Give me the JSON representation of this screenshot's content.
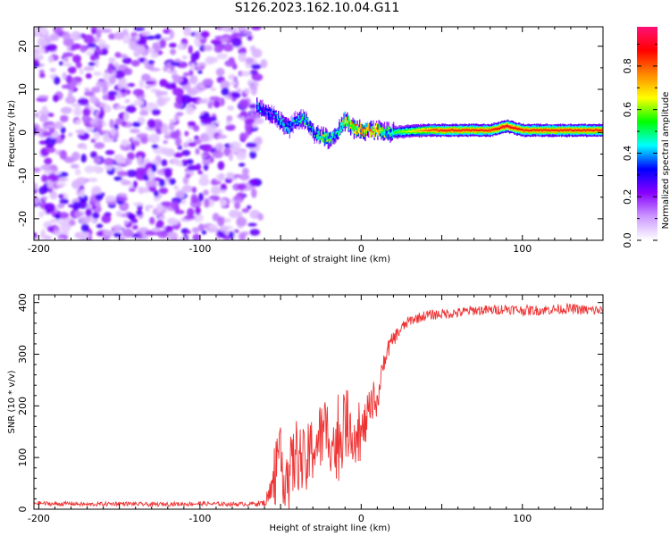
{
  "title": "S126.2023.162.10.04.G11",
  "chart_data": [
    {
      "type": "heatmap",
      "title": "S126.2023.162.10.04.G11",
      "xlabel": "Height of straight line (km)",
      "ylabel": "Frequency (Hz)",
      "xlim": [
        -203,
        150
      ],
      "ylim": [
        -25,
        24.5
      ],
      "x_ticks": [
        -200,
        -100,
        0,
        100
      ],
      "x_tick_labels": [
        "-200",
        "-100",
        "0",
        "100"
      ],
      "y_ticks": [
        -20,
        -10,
        0,
        10,
        20
      ],
      "y_tick_labels": [
        "-20",
        "-10",
        "0",
        "10",
        "20"
      ],
      "colorbar": {
        "label": "Normalized spectral amplitude",
        "range": [
          0,
          0.98
        ],
        "ticks": [
          0,
          0.2,
          0.4,
          0.6,
          0.8
        ],
        "tick_labels": [
          "0.0",
          "0.2",
          "0.4",
          "0.6",
          "0.8"
        ],
        "colormap": [
          "#ffffff",
          "#cc99ff",
          "#8800ff",
          "#0000ff",
          "#00ffff",
          "#00ff00",
          "#ffff00",
          "#ff8800",
          "#ff0000",
          "#ff1177"
        ]
      },
      "regions": {
        "noise_x_range": [
          -203,
          -63
        ],
        "noise_amplitude_range": [
          0.05,
          0.28
        ],
        "signal_track": [
          {
            "x": -65,
            "freq": 6.0,
            "amp": 0.45
          },
          {
            "x": -60,
            "freq": 5.0,
            "amp": 0.35
          },
          {
            "x": -55,
            "freq": 4.0,
            "amp": 0.4
          },
          {
            "x": -50,
            "freq": 2.5,
            "amp": 0.5
          },
          {
            "x": -45,
            "freq": 1.0,
            "amp": 0.45
          },
          {
            "x": -40,
            "freq": 3.0,
            "amp": 0.45
          },
          {
            "x": -35,
            "freq": 3.0,
            "amp": 0.55
          },
          {
            "x": -30,
            "freq": 0.0,
            "amp": 0.4
          },
          {
            "x": -25,
            "freq": -1.0,
            "amp": 0.65
          },
          {
            "x": -20,
            "freq": -1.5,
            "amp": 0.6
          },
          {
            "x": -15,
            "freq": 0.0,
            "amp": 0.5
          },
          {
            "x": -10,
            "freq": 3.0,
            "amp": 0.75
          },
          {
            "x": -5,
            "freq": 1.0,
            "amp": 0.75
          },
          {
            "x": 0,
            "freq": 0.5,
            "amp": 0.85
          },
          {
            "x": 5,
            "freq": 0.5,
            "amp": 0.9
          },
          {
            "x": 10,
            "freq": 0.5,
            "amp": 0.8
          },
          {
            "x": 15,
            "freq": 0.0,
            "amp": 0.6
          },
          {
            "x": 20,
            "freq": 0.0,
            "amp": 0.55
          },
          {
            "x": 30,
            "freq": 0.3,
            "amp": 0.65
          },
          {
            "x": 40,
            "freq": 0.5,
            "amp": 0.8
          },
          {
            "x": 50,
            "freq": 0.5,
            "amp": 0.85
          },
          {
            "x": 60,
            "freq": 0.5,
            "amp": 0.85
          },
          {
            "x": 70,
            "freq": 0.5,
            "amp": 0.85
          },
          {
            "x": 80,
            "freq": 0.5,
            "amp": 0.85
          },
          {
            "x": 90,
            "freq": 1.5,
            "amp": 0.92
          },
          {
            "x": 100,
            "freq": 0.5,
            "amp": 0.85
          },
          {
            "x": 110,
            "freq": 0.5,
            "amp": 0.85
          },
          {
            "x": 120,
            "freq": 0.5,
            "amp": 0.85
          },
          {
            "x": 130,
            "freq": 0.5,
            "amp": 0.85
          },
          {
            "x": 140,
            "freq": 0.5,
            "amp": 0.85
          },
          {
            "x": 150,
            "freq": 0.5,
            "amp": 0.85
          }
        ]
      }
    },
    {
      "type": "line",
      "xlabel": "Height of straight line (km)",
      "ylabel": "SNR (10 * v/v)",
      "xlim": [
        -203,
        150
      ],
      "ylim": [
        0,
        415
      ],
      "x_ticks": [
        -200,
        -100,
        0,
        100
      ],
      "x_tick_labels": [
        "-200",
        "-100",
        "0",
        "100"
      ],
      "y_ticks": [
        0,
        100,
        200,
        300,
        400
      ],
      "y_tick_labels": [
        "0",
        "100",
        "200",
        "300",
        "400"
      ],
      "color": "#ee3333",
      "series": [
        {
          "x": [
            -203,
            -190,
            -180,
            -170,
            -160,
            -150,
            -140,
            -130,
            -120,
            -110,
            -100,
            -90,
            -80,
            -70,
            -60,
            -55,
            -50,
            -45,
            -40,
            -35,
            -30,
            -25,
            -20,
            -15,
            -10,
            -5,
            0,
            5,
            10,
            15,
            20,
            25,
            30,
            40,
            50,
            60,
            70,
            80,
            90,
            100,
            110,
            120,
            130,
            140,
            150
          ],
          "values": [
            12,
            10,
            11,
            9,
            10,
            11,
            10,
            9,
            10,
            10,
            11,
            10,
            10,
            10,
            12,
            40,
            90,
            60,
            110,
            80,
            120,
            140,
            150,
            110,
            170,
            150,
            140,
            190,
            210,
            300,
            330,
            350,
            365,
            375,
            378,
            380,
            385,
            385,
            388,
            385,
            385,
            387,
            388,
            385,
            385
          ],
          "noise_amplitude": [
            4,
            4,
            4,
            4,
            4,
            4,
            4,
            4,
            4,
            4,
            4,
            4,
            4,
            4,
            6,
            40,
            70,
            70,
            70,
            70,
            70,
            70,
            70,
            70,
            70,
            60,
            50,
            40,
            30,
            20,
            15,
            12,
            10,
            10,
            10,
            10,
            10,
            10,
            10,
            10,
            10,
            10,
            10,
            10,
            10
          ]
        }
      ]
    }
  ]
}
